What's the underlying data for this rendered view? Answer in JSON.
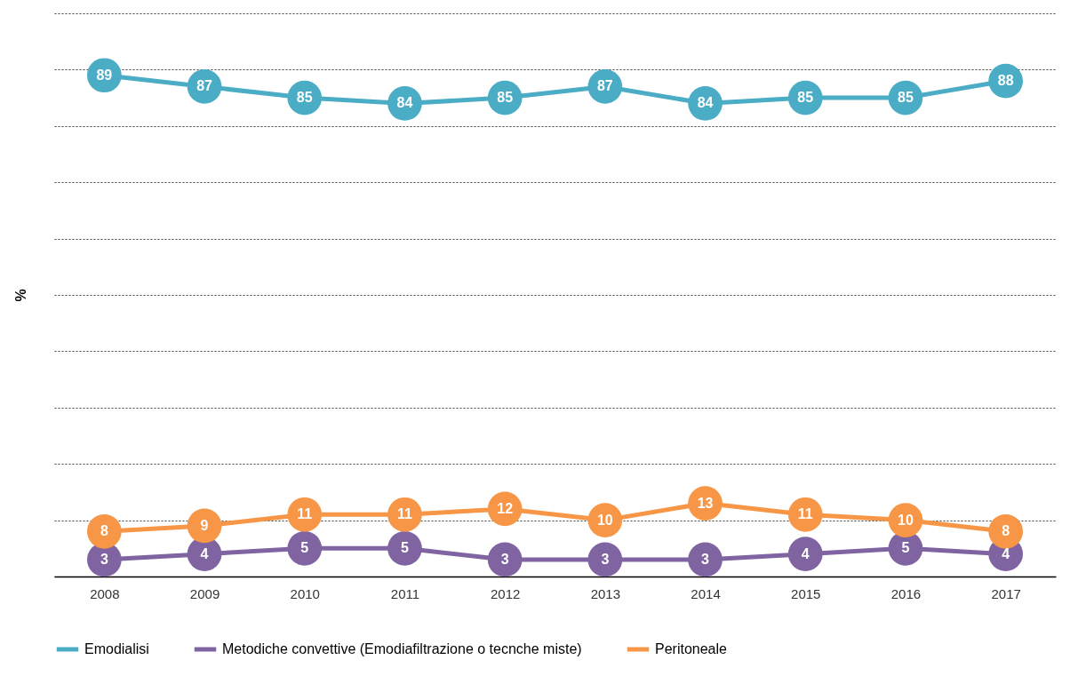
{
  "chart_data": {
    "type": "line",
    "ylabel": "%",
    "categories": [
      "2008",
      "2009",
      "2010",
      "2011",
      "2012",
      "2013",
      "2014",
      "2015",
      "2016",
      "2017"
    ],
    "series": [
      {
        "name": "Emodialisi",
        "color": "#4bacc6",
        "values": [
          89,
          87,
          85,
          84,
          85,
          87,
          84,
          85,
          85,
          88
        ]
      },
      {
        "name": "Metodiche convettive (Emodiafiltrazione o tecnche miste)",
        "color": "#8064a2",
        "values": [
          3,
          4,
          5,
          5,
          3,
          3,
          3,
          4,
          5,
          4
        ]
      },
      {
        "name": "Peritoneale",
        "color": "#f79646",
        "values": [
          8,
          9,
          11,
          11,
          12,
          10,
          13,
          11,
          10,
          8
        ]
      }
    ],
    "ylim": [
      0,
      100
    ],
    "yticks": [
      {
        "value": 0,
        "label": null
      },
      {
        "value": 10,
        "label": null
      },
      {
        "value": 20,
        "label": null
      },
      {
        "value": 30,
        "label": null
      },
      {
        "value": 40,
        "label": null
      },
      {
        "value": 50,
        "label": null
      },
      {
        "value": 60,
        "label": null
      },
      {
        "value": 70,
        "label": null
      },
      {
        "value": 80,
        "label": null
      },
      {
        "value": 90,
        "label": null
      },
      {
        "value": 100,
        "label": null
      }
    ],
    "tick_labels": "x",
    "grid": "y",
    "legend": "bottom",
    "marker": "circle",
    "line_style": "solid",
    "data_labels": true
  }
}
